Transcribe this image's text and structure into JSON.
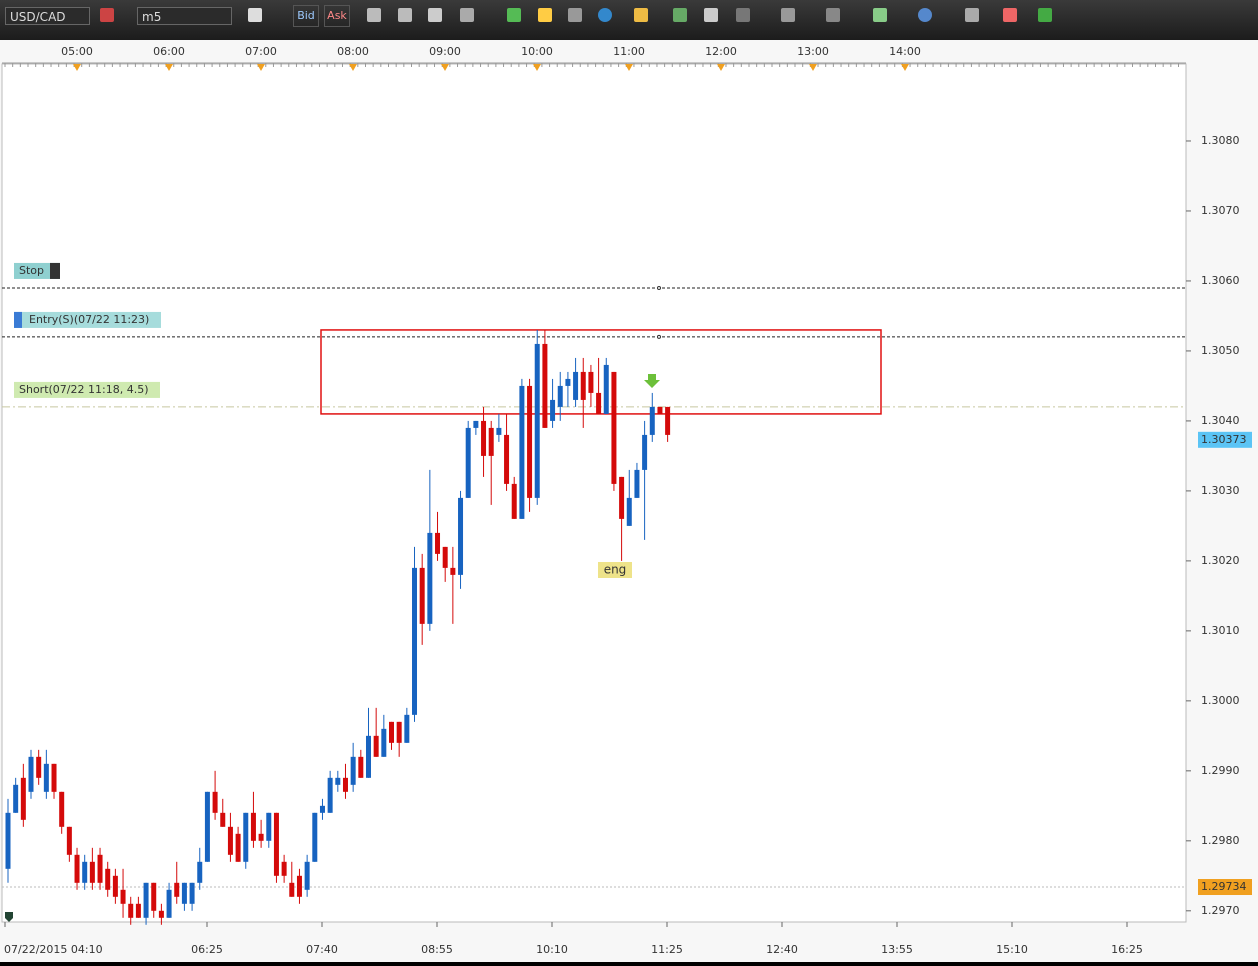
{
  "toolbar": {
    "symbol": "USD/CAD",
    "timeframe": "m5",
    "bid": "Bid",
    "ask": "Ask"
  },
  "chart_data": {
    "type": "candlestick",
    "open": [
      1.2976,
      1.2984,
      1.2989,
      1.2987,
      1.2992,
      1.2987,
      1.2991,
      1.2987,
      1.2982,
      1.2978,
      1.2974,
      1.2977,
      1.2978,
      1.2976,
      1.2975,
      1.2973,
      1.2971,
      1.2971,
      1.2969,
      1.2974,
      1.297,
      1.2969,
      1.2974,
      1.2971,
      1.2971,
      1.2974,
      1.2977,
      1.2987,
      1.2984,
      1.2982,
      1.2981,
      1.2977,
      1.2984,
      1.2981,
      1.298,
      1.2984,
      1.2977,
      1.2974,
      1.2975,
      1.2973,
      1.2977,
      1.2984,
      1.2984,
      1.2988,
      1.2989,
      1.2988,
      1.2992,
      1.2989,
      1.2995,
      1.2992,
      1.2997,
      1.2997,
      1.2994,
      1.2998,
      1.3019,
      1.3011,
      1.3024,
      1.3022,
      1.3019,
      1.3018,
      1.3029,
      1.3039,
      1.304,
      1.3039,
      1.3038,
      1.3038,
      1.3031,
      1.3026,
      1.3045,
      1.3029,
      1.3051,
      1.304,
      1.3042,
      1.3045,
      1.3043,
      1.3047,
      1.3047,
      1.3044,
      1.3041,
      1.3047,
      1.3032,
      1.3025,
      1.3029,
      1.3033,
      1.3038,
      1.3042,
      1.3042
    ],
    "high": [
      1.2986,
      1.2989,
      1.2991,
      1.2993,
      1.2993,
      1.2993,
      1.2991,
      1.2987,
      1.2982,
      1.2979,
      1.2978,
      1.2979,
      1.2979,
      1.2977,
      1.2976,
      1.2976,
      1.2972,
      1.2972,
      1.2974,
      1.2974,
      1.2971,
      1.2974,
      1.2977,
      1.2974,
      1.2974,
      1.2979,
      1.2987,
      1.299,
      1.2986,
      1.2984,
      1.2982,
      1.2984,
      1.2987,
      1.2983,
      1.2984,
      1.2984,
      1.2978,
      1.2977,
      1.2976,
      1.2978,
      1.2984,
      1.2986,
      1.299,
      1.299,
      1.2991,
      1.2994,
      1.2993,
      1.2999,
      1.2999,
      1.2998,
      1.2997,
      1.2997,
      1.2999,
      1.3022,
      1.3021,
      1.3033,
      1.3027,
      1.3022,
      1.3022,
      1.303,
      1.304,
      1.304,
      1.3042,
      1.304,
      1.3041,
      1.3041,
      1.3032,
      1.3046,
      1.3046,
      1.3053,
      1.3053,
      1.3046,
      1.3047,
      1.3047,
      1.3049,
      1.3049,
      1.3048,
      1.3049,
      1.3049,
      1.3047,
      1.3032,
      1.3033,
      1.3034,
      1.304,
      1.3044,
      1.3042,
      1.3042
    ],
    "low": [
      1.2974,
      1.2984,
      1.2982,
      1.2986,
      1.2988,
      1.2986,
      1.2986,
      1.2981,
      1.2977,
      1.2973,
      1.2973,
      1.2973,
      1.2973,
      1.2972,
      1.2971,
      1.2969,
      1.2968,
      1.2969,
      1.2968,
      1.2969,
      1.2968,
      1.2969,
      1.2971,
      1.297,
      1.297,
      1.2973,
      1.2977,
      1.2983,
      1.2982,
      1.2977,
      1.2977,
      1.2976,
      1.2979,
      1.2979,
      1.2979,
      1.2974,
      1.2974,
      1.2972,
      1.2971,
      1.2972,
      1.2977,
      1.2983,
      1.2984,
      1.2987,
      1.2986,
      1.2987,
      1.2989,
      1.2989,
      1.2992,
      1.2992,
      1.2993,
      1.2992,
      1.2994,
      1.2997,
      1.3008,
      1.301,
      1.302,
      1.3017,
      1.3011,
      1.3016,
      1.3029,
      1.3038,
      1.3032,
      1.3028,
      1.3037,
      1.303,
      1.3026,
      1.3026,
      1.3027,
      1.3028,
      1.3039,
      1.3039,
      1.304,
      1.3042,
      1.3042,
      1.3039,
      1.3042,
      1.3041,
      1.3041,
      1.303,
      1.302,
      1.3025,
      1.3029,
      1.3023,
      1.3037,
      1.3041,
      1.3037
    ],
    "close": [
      1.2984,
      1.2988,
      1.2983,
      1.2992,
      1.2989,
      1.2991,
      1.2987,
      1.2982,
      1.2978,
      1.2974,
      1.2977,
      1.2974,
      1.2974,
      1.2973,
      1.2972,
      1.2971,
      1.2969,
      1.2969,
      1.2974,
      1.297,
      1.2969,
      1.2973,
      1.2972,
      1.2974,
      1.2974,
      1.2977,
      1.2987,
      1.2984,
      1.2982,
      1.2978,
      1.2977,
      1.2984,
      1.298,
      1.298,
      1.2984,
      1.2975,
      1.2975,
      1.2972,
      1.2972,
      1.2977,
      1.2984,
      1.2985,
      1.2989,
      1.2989,
      1.2987,
      1.2992,
      1.2989,
      1.2995,
      1.2992,
      1.2996,
      1.2994,
      1.2994,
      1.2998,
      1.3019,
      1.3011,
      1.3024,
      1.3021,
      1.3019,
      1.3018,
      1.3029,
      1.3039,
      1.304,
      1.3035,
      1.3035,
      1.3039,
      1.3031,
      1.3026,
      1.3045,
      1.3029,
      1.3051,
      1.3039,
      1.3043,
      1.3045,
      1.3046,
      1.3047,
      1.3043,
      1.3044,
      1.3041,
      1.3048,
      1.3031,
      1.3026,
      1.3029,
      1.3033,
      1.3038,
      1.3042,
      1.3041,
      1.3038
    ],
    "up_color": "#1763c0",
    "down_color": "#d40a0a",
    "ylim": [
      1.29684,
      1.3091
    ],
    "yticks": [
      {
        "value": 1.297,
        "label": "1.2970"
      },
      {
        "value": 1.298,
        "label": "1.2980"
      },
      {
        "value": 1.299,
        "label": "1.2990"
      },
      {
        "value": 1.3,
        "label": "1.3000"
      },
      {
        "value": 1.301,
        "label": "1.3010"
      },
      {
        "value": 1.302,
        "label": "1.3020"
      },
      {
        "value": 1.303,
        "label": "1.3030"
      },
      {
        "value": 1.304,
        "label": "1.3040"
      },
      {
        "value": 1.305,
        "label": "1.3050"
      },
      {
        "value": 1.306,
        "label": "1.3060"
      },
      {
        "value": 1.307,
        "label": "1.3070"
      },
      {
        "value": 1.308,
        "label": "1.3080"
      }
    ],
    "top_time_labels": [
      "05:00",
      "06:00",
      "07:00",
      "08:00",
      "09:00",
      "10:00",
      "11:00",
      "12:00",
      "13:00",
      "14:00"
    ],
    "bottom_time_labels": [
      "07/22/2015 04:10",
      "06:25",
      "07:40",
      "08:55",
      "10:10",
      "11:25",
      "12:40",
      "13:55",
      "15:10",
      "16:25"
    ],
    "levels": [
      {
        "label": "Stop",
        "value": 1.3059
      },
      {
        "label": "Entry(S)(07/22 11:23)",
        "value": 1.3052
      },
      {
        "label": "Short(07/22 11:18, 4.5)",
        "value": 1.3042
      }
    ],
    "zone": {
      "top": 1.3053,
      "bottom": 1.3041,
      "color": "#e01010"
    },
    "current_price": 1.30373,
    "bid_price": 1.29734,
    "annotation": "eng"
  }
}
